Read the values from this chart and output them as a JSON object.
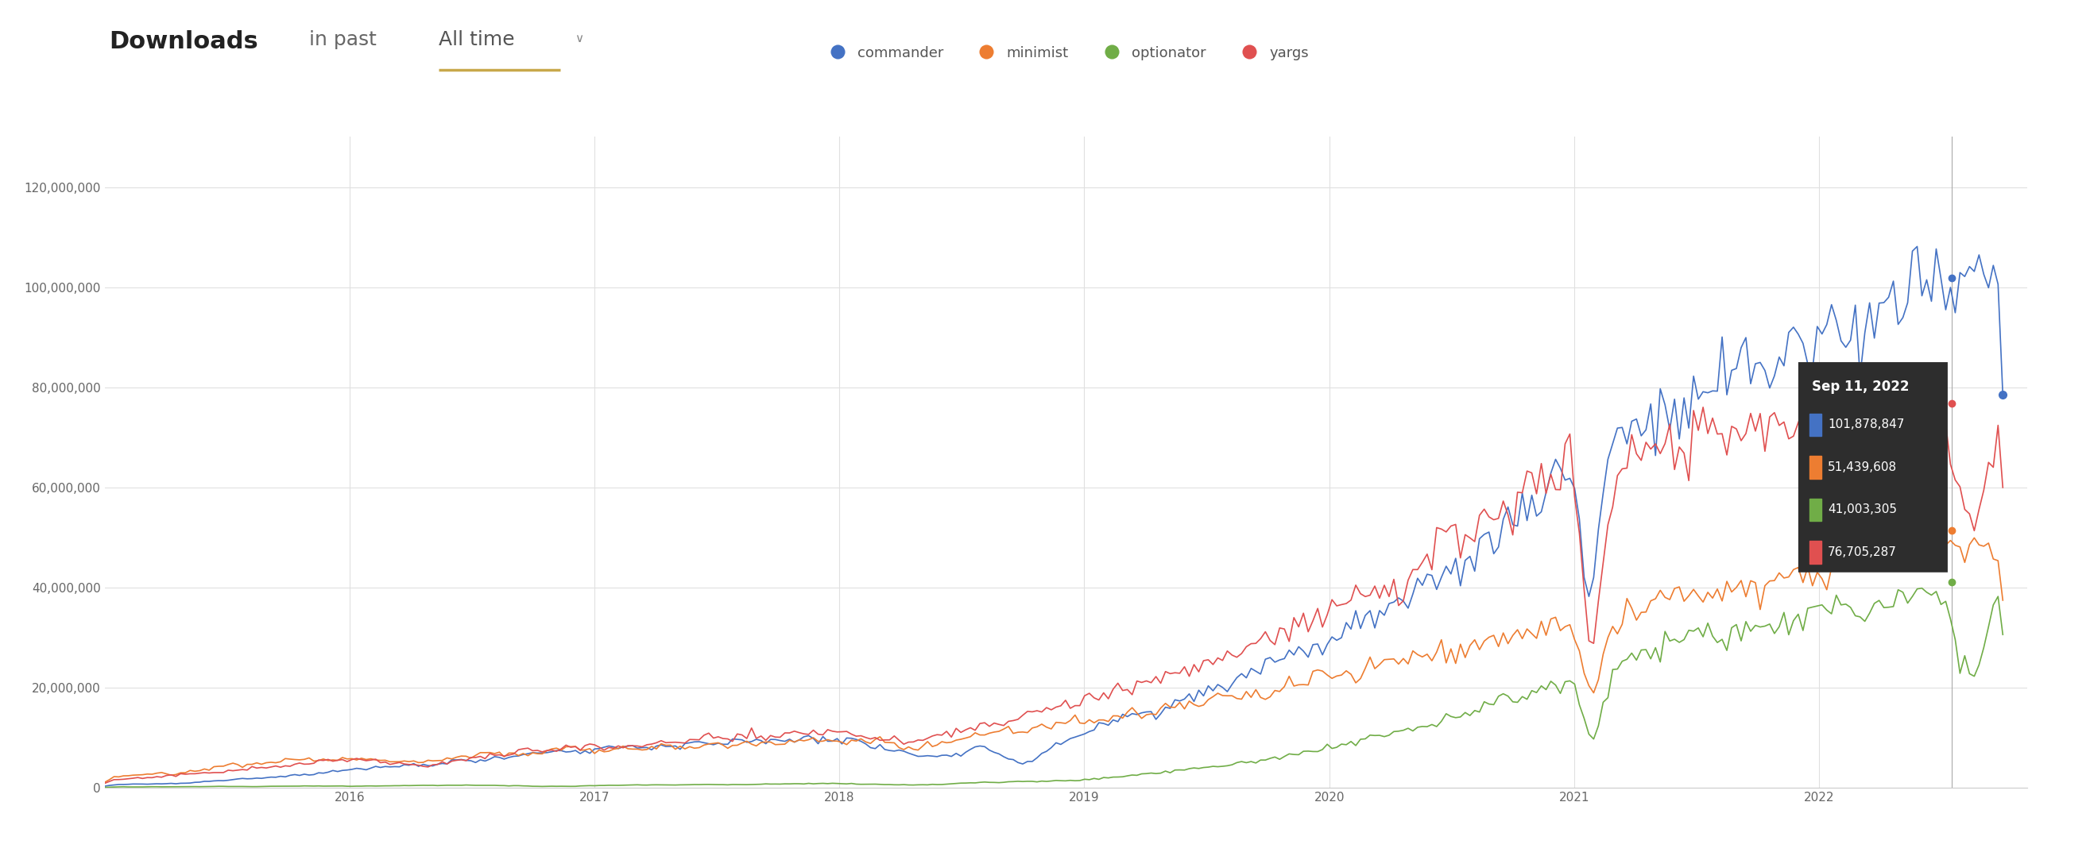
{
  "title_bold": "Downloads",
  "title_regular": " in past",
  "title_link": "All time",
  "legend_labels": [
    "commander",
    "minimist",
    "optionator",
    "yargs"
  ],
  "legend_colors": [
    "#4472c4",
    "#ed7d31",
    "#70ad47",
    "#e05050"
  ],
  "line_colors": [
    "#4472c4",
    "#ed7d31",
    "#70ad47",
    "#e05050"
  ],
  "ylim": [
    0,
    130000000
  ],
  "yticks": [
    0,
    20000000,
    40000000,
    60000000,
    80000000,
    100000000,
    120000000
  ],
  "ytick_labels": [
    "0",
    "20,000,000",
    "40,000,000",
    "60,000,000",
    "80,000,000",
    "100,000,000",
    "120,000,000"
  ],
  "year_lines": [
    2016,
    2017,
    2018,
    2019,
    2020,
    2021,
    2022
  ],
  "tooltip_date": "Sep 11, 2022",
  "tooltip_values": [
    "101,878,847",
    "51,439,608",
    "41,003,305",
    "76,705,287"
  ],
  "tooltip_colors": [
    "#4472c4",
    "#ed7d31",
    "#70ad47",
    "#e05050"
  ],
  "background_color": "#ffffff",
  "grid_color": "#e0e0e0",
  "axis_color": "#cccccc",
  "legend_text_color": "#555555",
  "title_bold_size": 22,
  "title_regular_size": 18,
  "legend_font_size": 13
}
